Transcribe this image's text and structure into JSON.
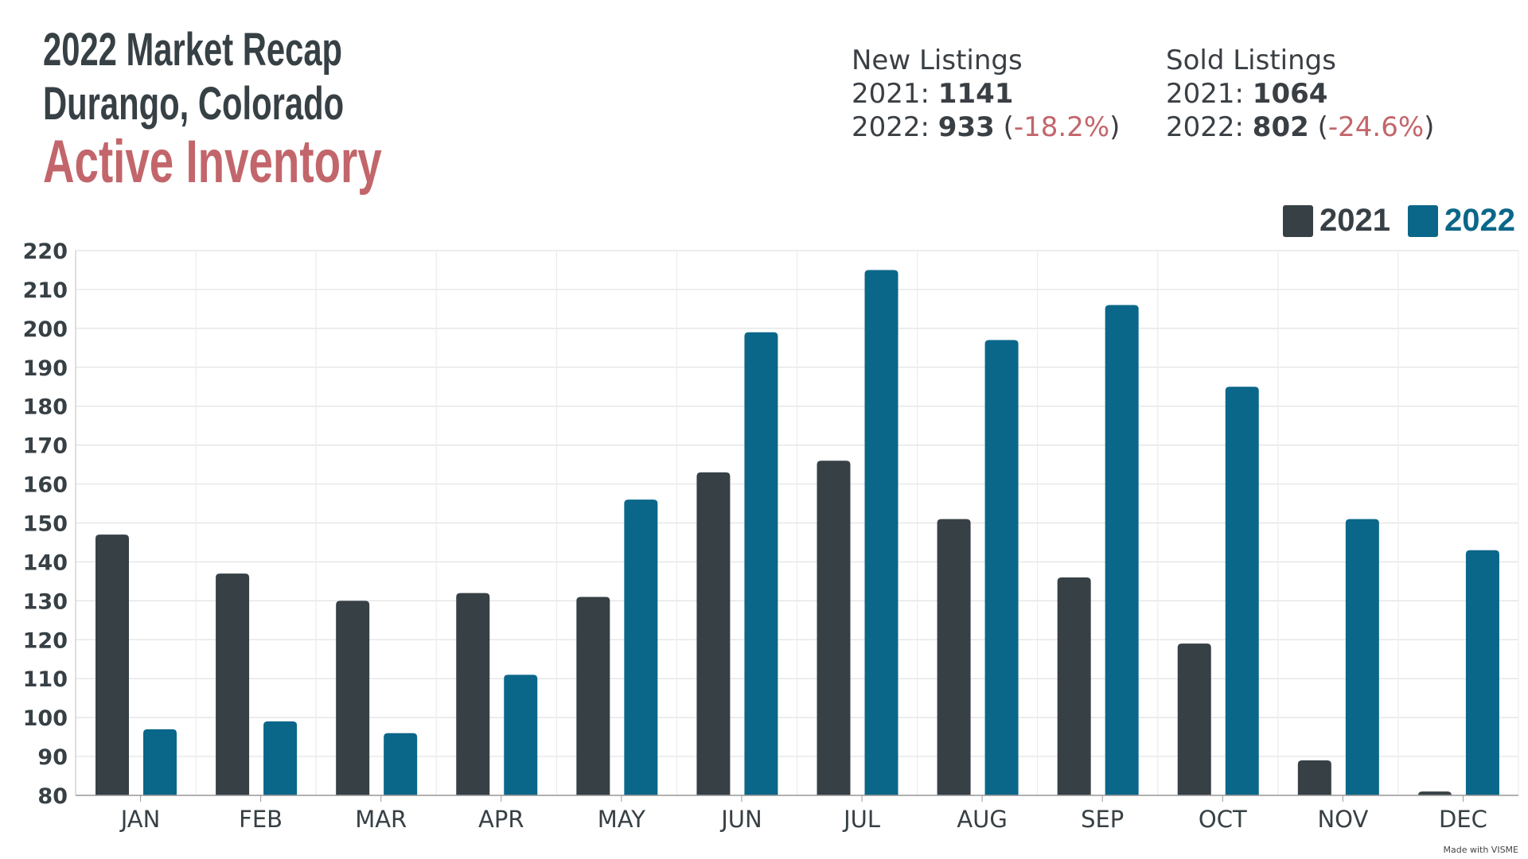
{
  "header": {
    "title_line1": "2022 Market Recap",
    "title_line2": "Durango, Colorado",
    "title_line3": "Active Inventory"
  },
  "stats": {
    "new_listings": {
      "label": "New Listings",
      "y2021_label": "2021: ",
      "y2021": "1141",
      "y2022_label": "2022: ",
      "y2022": "933",
      "change": "-18.2%"
    },
    "sold_listings": {
      "label": "Sold Listings",
      "y2021_label": "2021: ",
      "y2021": "1064",
      "y2022_label": "2022: ",
      "y2022": "802",
      "change": "-24.6%"
    }
  },
  "footer": {
    "watermark": "Made with VISME"
  },
  "chart_data": {
    "type": "bar",
    "categories": [
      "JAN",
      "FEB",
      "MAR",
      "APR",
      "MAY",
      "JUN",
      "JUL",
      "AUG",
      "SEP",
      "OCT",
      "NOV",
      "DEC"
    ],
    "series": [
      {
        "name": "2021",
        "color": "#374045",
        "values": [
          147,
          137,
          130,
          132,
          131,
          163,
          166,
          151,
          136,
          119,
          89,
          81
        ]
      },
      {
        "name": "2022",
        "color": "#0a6789",
        "values": [
          97,
          99,
          96,
          111,
          156,
          199,
          215,
          197,
          206,
          185,
          151,
          143
        ]
      }
    ],
    "ylim": [
      80,
      220
    ],
    "yticks": [
      80,
      90,
      100,
      110,
      120,
      130,
      140,
      150,
      160,
      170,
      180,
      190,
      200,
      210,
      220
    ],
    "grid": true,
    "legend": "top-right"
  }
}
